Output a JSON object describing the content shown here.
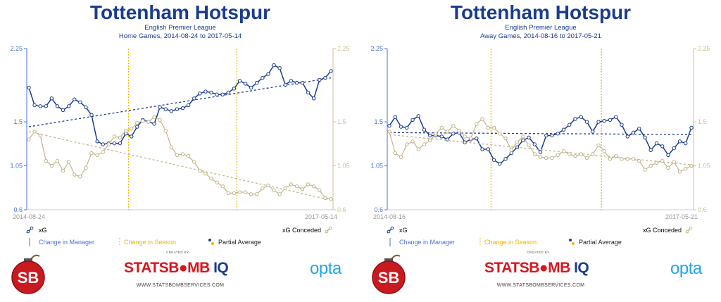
{
  "colors": {
    "xg": "#1a3c8e",
    "xg_conceded": "#c2b48a",
    "season": "#f0b400",
    "manager": "#4a72d8",
    "axis_left": "#4a72d8",
    "axis_right": "#d2c28c"
  },
  "legend": {
    "xg": "xG",
    "xg_conceded": "xG Conceded",
    "change_manager": "Change in Manager",
    "change_season": "Change in Season",
    "partial_average": "Partial Average"
  },
  "branding": {
    "created_by": "CREATED BY",
    "wordmark_red": "STATSB",
    "wordmark_mid": "MB",
    "wordmark_blue": " IQ",
    "website": "WWW.STATSBOMBSERVICES.COM",
    "opta": "opta",
    "badge": "SB"
  },
  "chart_data": [
    {
      "type": "line",
      "title": "Tottenham Hotspur",
      "subtitle": "English Premier League",
      "subtitle2": "Home Games, 2014-08-24 to 2017-05-14",
      "x_start_label": "2014-08-24",
      "x_end_label": "2017-05-14",
      "ylim": [
        0.6,
        2.25
      ],
      "yticks": [
        "2.25",
        "1.5",
        "1.05",
        "0.6"
      ],
      "ytick_values": [
        2.25,
        1.5,
        1.05,
        0.6
      ],
      "season_changes": [
        18,
        37
      ],
      "series": [
        {
          "name": "xG",
          "values": [
            1.85,
            1.67,
            1.66,
            1.66,
            1.74,
            1.66,
            1.62,
            1.66,
            1.73,
            1.7,
            1.65,
            1.57,
            1.3,
            1.27,
            1.28,
            1.28,
            1.28,
            1.38,
            1.35,
            1.45,
            1.52,
            1.5,
            1.48,
            1.65,
            1.63,
            1.61,
            1.63,
            1.64,
            1.67,
            1.74,
            1.79,
            1.81,
            1.8,
            1.78,
            1.78,
            1.8,
            1.84,
            1.92,
            1.89,
            1.85,
            1.9,
            1.95,
            1.99,
            2.08,
            2.05,
            1.88,
            1.92,
            1.9,
            1.9,
            1.8,
            1.74,
            1.93,
            1.95,
            2.02
          ],
          "trend": [
            1.45,
            1.95
          ]
        },
        {
          "name": "xG Conceded",
          "values": [
            1.32,
            1.4,
            1.36,
            1.1,
            1.05,
            1.1,
            1.0,
            1.09,
            0.96,
            0.94,
            1.03,
            1.18,
            1.16,
            1.19,
            1.27,
            1.35,
            1.34,
            1.41,
            1.43,
            1.49,
            1.51,
            1.5,
            1.55,
            1.52,
            1.41,
            1.24,
            1.16,
            1.17,
            1.15,
            1.09,
            1.0,
            0.97,
            0.92,
            0.88,
            0.84,
            0.77,
            0.77,
            0.78,
            0.78,
            0.76,
            0.76,
            0.82,
            0.85,
            0.8,
            0.76,
            0.82,
            0.86,
            0.84,
            0.81,
            0.86,
            0.84,
            0.8,
            0.72,
            0.71
          ],
          "trend": [
            1.4,
            0.7
          ]
        }
      ]
    },
    {
      "type": "line",
      "title": "Tottenham Hotspur",
      "subtitle": "English Premier League",
      "subtitle2": "Away Games, 2014-08-16 to 2017-05-21",
      "x_start_label": "2014-08-16",
      "x_end_label": "2017-05-21",
      "ylim": [
        0.6,
        2.25
      ],
      "yticks": [
        "2.25",
        "1.5",
        "1.05",
        "0.6"
      ],
      "ytick_values": [
        2.25,
        1.5,
        1.05,
        0.6
      ],
      "season_changes": [
        18,
        37
      ],
      "series": [
        {
          "name": "xG",
          "values": [
            1.46,
            1.55,
            1.45,
            1.44,
            1.52,
            1.56,
            1.42,
            1.36,
            1.36,
            1.35,
            1.32,
            1.38,
            1.39,
            1.29,
            1.32,
            1.33,
            1.22,
            1.22,
            1.11,
            1.07,
            1.12,
            1.18,
            1.24,
            1.31,
            1.34,
            1.27,
            1.19,
            1.36,
            1.36,
            1.38,
            1.42,
            1.47,
            1.53,
            1.55,
            1.5,
            1.4,
            1.5,
            1.51,
            1.52,
            1.55,
            1.47,
            1.35,
            1.39,
            1.43,
            1.34,
            1.21,
            1.28,
            1.25,
            1.16,
            1.23,
            1.3,
            1.28,
            1.44
          ],
          "trend": [
            1.39,
            1.37
          ]
        },
        {
          "name": "xG Conceded",
          "values": [
            1.4,
            1.18,
            1.14,
            1.27,
            1.3,
            1.22,
            1.27,
            1.31,
            1.38,
            1.44,
            1.4,
            1.46,
            1.41,
            1.35,
            1.33,
            1.48,
            1.53,
            1.44,
            1.44,
            1.38,
            1.33,
            1.21,
            1.29,
            1.35,
            1.26,
            1.17,
            1.14,
            1.13,
            1.13,
            1.16,
            1.2,
            1.17,
            1.15,
            1.17,
            1.13,
            1.17,
            1.26,
            1.2,
            1.12,
            1.15,
            1.12,
            1.12,
            1.12,
            1.1,
            1.01,
            1.05,
            1.08,
            1.1,
            1.03,
            1.09,
            0.99,
            1.02,
            1.05
          ],
          "trend": [
            1.37,
            1.06
          ]
        }
      ]
    }
  ]
}
